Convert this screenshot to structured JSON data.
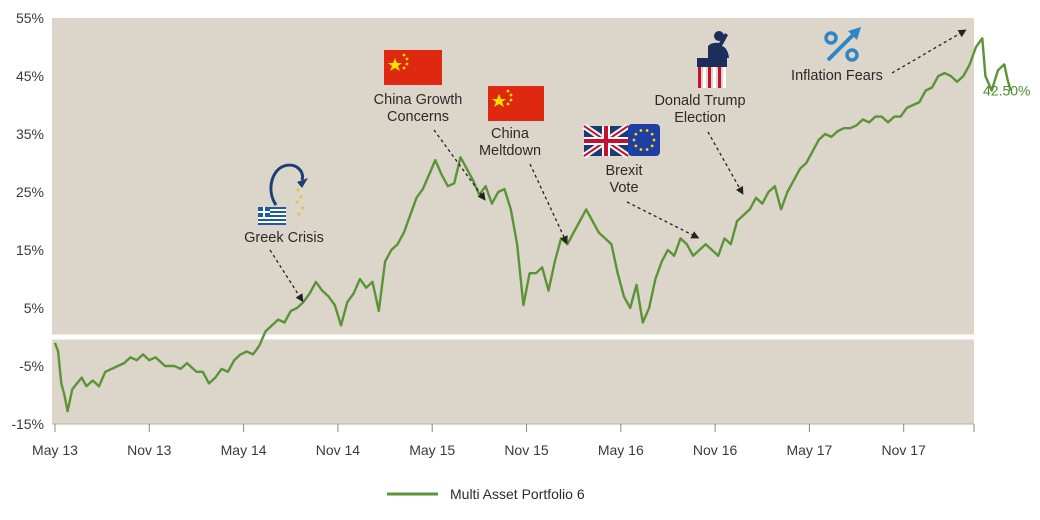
{
  "chart_data": {
    "type": "line",
    "title": "",
    "xlabel": "",
    "ylabel": "",
    "x_ticks": [
      "May 13",
      "Nov 13",
      "May 14",
      "Nov 14",
      "May 15",
      "Nov 15",
      "May 16",
      "Nov 16",
      "May 17",
      "Nov 17"
    ],
    "y_ticks": [
      "55%",
      "45%",
      "35%",
      "25%",
      "15%",
      "5%",
      "-5%",
      "-15%"
    ],
    "ylim": [
      -15,
      55
    ],
    "grid": false,
    "legend_position": "bottom-center",
    "end_label": "42.50%",
    "series": [
      {
        "name": "Multi Asset Portfolio 6",
        "color": "#5a9437",
        "points": [
          [
            0,
            -1
          ],
          [
            0.1,
            -2.5
          ],
          [
            0.2,
            -8
          ],
          [
            0.3,
            -10
          ],
          [
            0.4,
            -12.8
          ],
          [
            0.55,
            -9
          ],
          [
            0.7,
            -8
          ],
          [
            0.85,
            -7
          ],
          [
            1,
            -8.5
          ],
          [
            1.2,
            -7.5
          ],
          [
            1.4,
            -8.5
          ],
          [
            1.6,
            -6
          ],
          [
            1.8,
            -5.5
          ],
          [
            2,
            -5
          ],
          [
            2.2,
            -4.5
          ],
          [
            2.4,
            -3.5
          ],
          [
            2.6,
            -4
          ],
          [
            2.8,
            -3
          ],
          [
            3,
            -4
          ],
          [
            3.2,
            -3.5
          ],
          [
            3.5,
            -5
          ],
          [
            3.8,
            -5
          ],
          [
            4,
            -5.5
          ],
          [
            4.2,
            -4.5
          ],
          [
            4.5,
            -6
          ],
          [
            4.7,
            -6
          ],
          [
            4.9,
            -8
          ],
          [
            5.1,
            -7
          ],
          [
            5.3,
            -5.5
          ],
          [
            5.5,
            -6
          ],
          [
            5.7,
            -4
          ],
          [
            5.9,
            -3
          ],
          [
            6.1,
            -2.5
          ],
          [
            6.3,
            -3
          ],
          [
            6.5,
            -1.5
          ],
          [
            6.7,
            1
          ],
          [
            6.9,
            2
          ],
          [
            7.1,
            3
          ],
          [
            7.3,
            2.5
          ],
          [
            7.5,
            4.5
          ],
          [
            7.7,
            5
          ],
          [
            7.9,
            6
          ],
          [
            8.1,
            7.5
          ],
          [
            8.3,
            9.5
          ],
          [
            8.5,
            8
          ],
          [
            8.7,
            7
          ],
          [
            8.9,
            5.5
          ],
          [
            9.1,
            2
          ],
          [
            9.3,
            6
          ],
          [
            9.5,
            7.5
          ],
          [
            9.7,
            10
          ],
          [
            9.9,
            8.5
          ],
          [
            10.1,
            9.5
          ],
          [
            10.3,
            4.5
          ],
          [
            10.5,
            13
          ],
          [
            10.7,
            15
          ],
          [
            10.9,
            16
          ],
          [
            11.1,
            18
          ],
          [
            11.3,
            21
          ],
          [
            11.5,
            24
          ],
          [
            11.7,
            25.5
          ],
          [
            11.9,
            28
          ],
          [
            12.1,
            30.5
          ],
          [
            12.3,
            28
          ],
          [
            12.5,
            26
          ],
          [
            12.7,
            26.5
          ],
          [
            12.9,
            31
          ],
          [
            13.1,
            29
          ],
          [
            13.3,
            27
          ],
          [
            13.5,
            24.5
          ],
          [
            13.7,
            26
          ],
          [
            13.9,
            23
          ],
          [
            14.1,
            25
          ],
          [
            14.3,
            25.5
          ],
          [
            14.5,
            22
          ],
          [
            14.7,
            16
          ],
          [
            14.9,
            5.5
          ],
          [
            15.1,
            11
          ],
          [
            15.3,
            11
          ],
          [
            15.5,
            12
          ],
          [
            15.7,
            8
          ],
          [
            15.9,
            13
          ],
          [
            16.1,
            17
          ],
          [
            16.3,
            16
          ],
          [
            16.5,
            18
          ],
          [
            16.7,
            20
          ],
          [
            16.9,
            22
          ],
          [
            17.1,
            20
          ],
          [
            17.3,
            18
          ],
          [
            17.5,
            17
          ],
          [
            17.7,
            16
          ],
          [
            17.9,
            11
          ],
          [
            18.1,
            7
          ],
          [
            18.3,
            5
          ],
          [
            18.5,
            9
          ],
          [
            18.7,
            2.5
          ],
          [
            18.9,
            5
          ],
          [
            19.1,
            10
          ],
          [
            19.3,
            13
          ],
          [
            19.5,
            15
          ],
          [
            19.7,
            14
          ],
          [
            19.9,
            17
          ],
          [
            20.1,
            16
          ],
          [
            20.3,
            14
          ],
          [
            20.5,
            15
          ],
          [
            20.7,
            16
          ],
          [
            20.9,
            15
          ],
          [
            21.1,
            14
          ],
          [
            21.3,
            17
          ],
          [
            21.5,
            16
          ],
          [
            21.7,
            20
          ],
          [
            21.9,
            21
          ],
          [
            22.1,
            22
          ],
          [
            22.3,
            24
          ],
          [
            22.5,
            23
          ],
          [
            22.7,
            25
          ],
          [
            22.9,
            26
          ],
          [
            23.1,
            22
          ],
          [
            23.3,
            25
          ],
          [
            23.5,
            27
          ],
          [
            23.7,
            29
          ],
          [
            23.9,
            30
          ],
          [
            24.1,
            32
          ],
          [
            24.3,
            34
          ],
          [
            24.5,
            35
          ],
          [
            24.7,
            34.5
          ],
          [
            24.9,
            35.5
          ],
          [
            25.1,
            36
          ],
          [
            25.3,
            36
          ],
          [
            25.5,
            36.5
          ],
          [
            25.7,
            37.5
          ],
          [
            25.9,
            37
          ],
          [
            26.1,
            38
          ],
          [
            26.3,
            38
          ],
          [
            26.5,
            37
          ],
          [
            26.7,
            38
          ],
          [
            26.9,
            38
          ],
          [
            27.1,
            39.5
          ],
          [
            27.3,
            40
          ],
          [
            27.5,
            40.5
          ],
          [
            27.7,
            42.5
          ],
          [
            27.9,
            43
          ],
          [
            28.1,
            45
          ],
          [
            28.3,
            45.5
          ],
          [
            28.5,
            45
          ],
          [
            28.7,
            44
          ],
          [
            28.9,
            45
          ],
          [
            29.1,
            47
          ],
          [
            29.3,
            50
          ],
          [
            29.5,
            51.5
          ],
          [
            29.6,
            45
          ],
          [
            29.8,
            42.5
          ],
          [
            30,
            46
          ],
          [
            30.2,
            47
          ],
          [
            30.3,
            44.5
          ],
          [
            30.4,
            42.5
          ]
        ]
      }
    ],
    "annotations": [
      {
        "lines": [
          "Greek Crisis"
        ],
        "x": 7.9,
        "y": 6,
        "icon": "greece-flag-and-plunging-euro-icon"
      },
      {
        "lines": [
          "China Growth",
          "Concerns"
        ],
        "x": 13.7,
        "y": 23.5,
        "icon": "china-flag-icon"
      },
      {
        "lines": [
          "China",
          "Meltdown"
        ],
        "x": 16.3,
        "y": 16,
        "icon": "china-flag-icon"
      },
      {
        "lines": [
          "Brexit",
          "Vote"
        ],
        "x": 20.5,
        "y": 17,
        "icon": "uk-eu-flags-icon"
      },
      {
        "lines": [
          "Donald Trump",
          "Election"
        ],
        "x": 21.9,
        "y": 24.5,
        "icon": "us-podium-icon"
      },
      {
        "lines": [
          "Inflation Fears"
        ],
        "x": 29.0,
        "y": 53,
        "icon": "percent-icon"
      }
    ]
  }
}
